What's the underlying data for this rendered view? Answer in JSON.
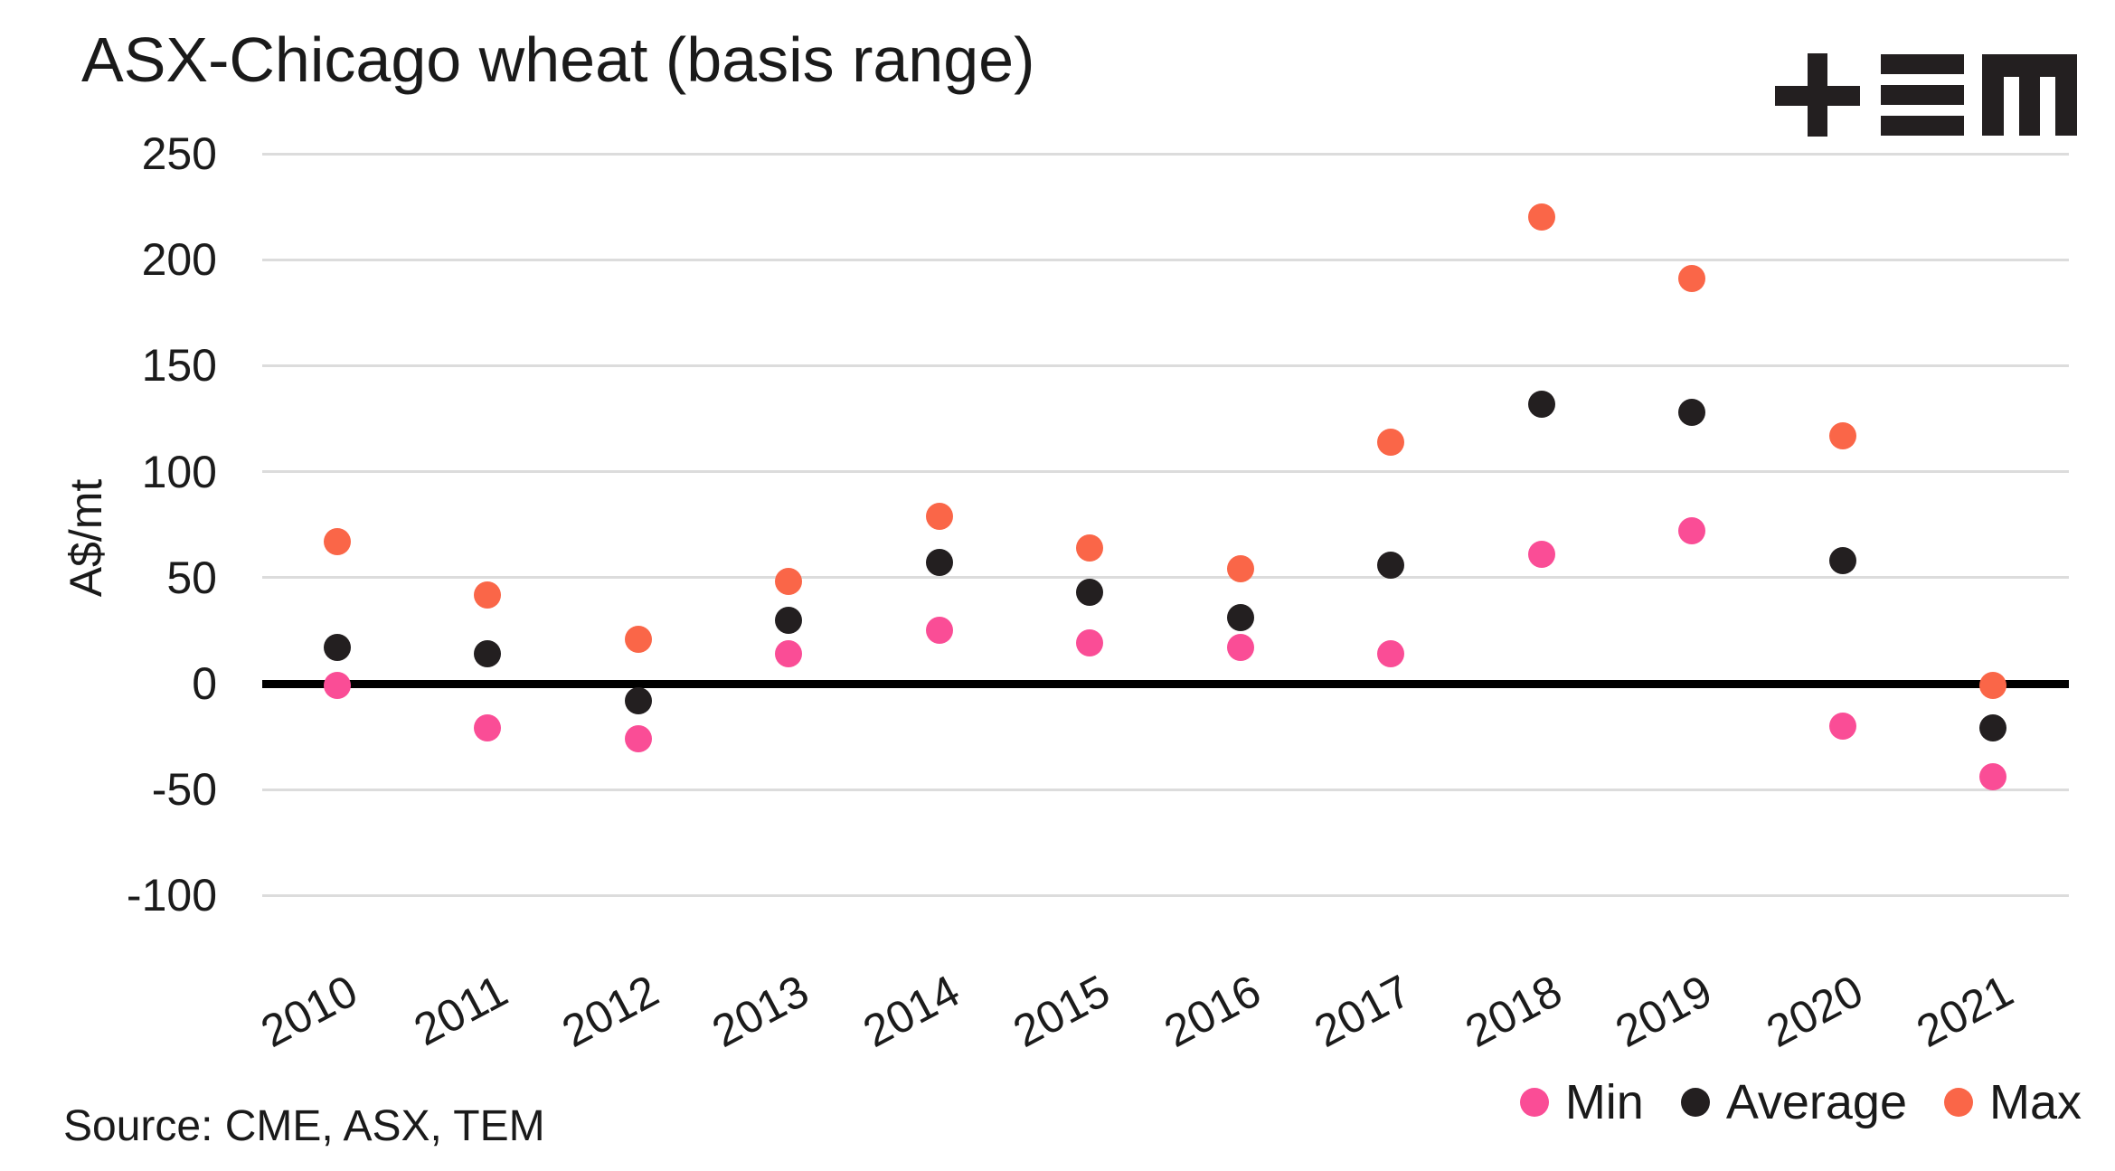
{
  "title": "ASX-Chicago wheat (basis range)",
  "logo": {
    "name": "TEM logo",
    "color": "#231F20"
  },
  "y_axis": {
    "label": "A$/mt",
    "ticks": [
      250,
      200,
      150,
      100,
      50,
      0,
      -50,
      -100
    ]
  },
  "source": "Source: CME, ASX, TEM",
  "legend": [
    {
      "label": "Min",
      "color": "#FA4D96"
    },
    {
      "label": "Average",
      "color": "#231F20"
    },
    {
      "label": "Max",
      "color": "#FA6648"
    }
  ],
  "chart_data": {
    "type": "scatter",
    "title": "ASX-Chicago wheat (basis range)",
    "xlabel": "",
    "ylabel": "A$/mt",
    "ylim": [
      -100,
      250
    ],
    "ytick_step": 50,
    "grid": true,
    "legend_position": "bottom-right",
    "categories": [
      "2010",
      "2011",
      "2012",
      "2013",
      "2014",
      "2015",
      "2016",
      "2017",
      "2018",
      "2019",
      "2020",
      "2021"
    ],
    "series": [
      {
        "name": "Min",
        "color": "#FA4D96",
        "values": [
          -1,
          -21,
          -26,
          14,
          25,
          19,
          17,
          14,
          61,
          72,
          -20,
          -44
        ]
      },
      {
        "name": "Average",
        "color": "#231F20",
        "values": [
          17,
          14,
          -8,
          30,
          57,
          43,
          31,
          56,
          132,
          128,
          58,
          -21
        ]
      },
      {
        "name": "Max",
        "color": "#FA6648",
        "values": [
          67,
          42,
          21,
          48,
          79,
          64,
          54,
          114,
          220,
          191,
          117,
          -1
        ]
      }
    ]
  }
}
